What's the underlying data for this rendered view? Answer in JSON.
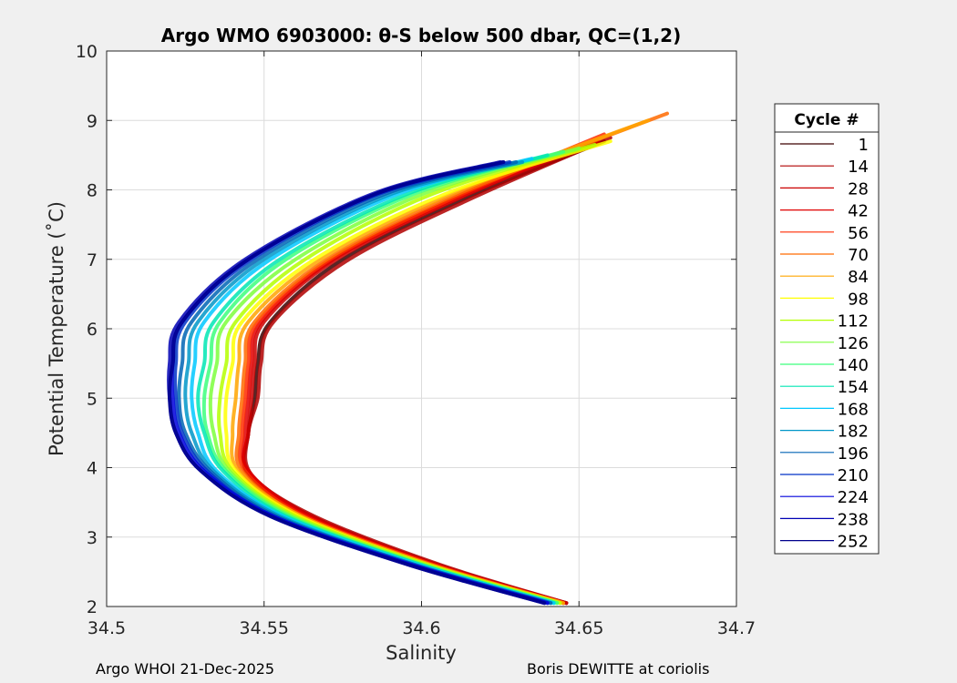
{
  "chart_data": {
    "type": "line",
    "title": "Argo WMO 6903000: θ-S below 500 dbar,  QC=(1,2)",
    "xlabel": "Salinity",
    "ylabel": "Potential Temperature (˚C)",
    "xlim": [
      34.5,
      34.7
    ],
    "ylim": [
      2,
      10
    ],
    "x_ticks": [
      34.5,
      34.55,
      34.6,
      34.65,
      34.7
    ],
    "x_tick_labels": [
      "34.5",
      "34.55",
      "34.6",
      "34.65",
      "34.7"
    ],
    "y_ticks": [
      2,
      3,
      4,
      5,
      6,
      7,
      8,
      9,
      10
    ],
    "y_tick_labels": [
      "2",
      "3",
      "4",
      "5",
      "6",
      "7",
      "8",
      "9",
      "10"
    ],
    "grid": true,
    "legend_position": "right",
    "legend_title": "Cycle #",
    "series": [
      {
        "name": "1",
        "color": "#3c0000",
        "profile": [
          [
            34.646,
            2.05
          ],
          [
            34.605,
            2.6
          ],
          [
            34.565,
            3.3
          ],
          [
            34.545,
            3.9
          ],
          [
            34.545,
            4.5
          ],
          [
            34.547,
            5.0
          ],
          [
            34.548,
            5.5
          ],
          [
            34.552,
            6.1
          ],
          [
            34.575,
            7.0
          ],
          [
            34.615,
            7.9
          ],
          [
            34.658,
            8.7
          ]
        ]
      },
      {
        "name": "14",
        "color": "#b00000",
        "profile": [
          [
            34.646,
            2.05
          ],
          [
            34.606,
            2.6
          ],
          [
            34.566,
            3.3
          ],
          [
            34.546,
            3.9
          ],
          [
            34.545,
            4.5
          ],
          [
            34.548,
            5.0
          ],
          [
            34.549,
            5.5
          ],
          [
            34.553,
            6.1
          ],
          [
            34.577,
            7.0
          ],
          [
            34.617,
            7.9
          ],
          [
            34.66,
            8.75
          ]
        ]
      },
      {
        "name": "28",
        "color": "#cc0000",
        "profile": [
          [
            34.646,
            2.05
          ],
          [
            34.605,
            2.6
          ],
          [
            34.565,
            3.3
          ],
          [
            34.545,
            3.95
          ],
          [
            34.545,
            4.5
          ],
          [
            34.546,
            5.0
          ],
          [
            34.547,
            5.5
          ],
          [
            34.55,
            6.1
          ],
          [
            34.573,
            7.0
          ],
          [
            34.613,
            7.9
          ],
          [
            34.656,
            8.7
          ]
        ]
      },
      {
        "name": "42",
        "color": "#e00000",
        "profile": [
          [
            34.645,
            2.05
          ],
          [
            34.604,
            2.6
          ],
          [
            34.564,
            3.3
          ],
          [
            34.545,
            3.95
          ],
          [
            34.544,
            4.5
          ],
          [
            34.545,
            5.0
          ],
          [
            34.546,
            5.5
          ],
          [
            34.549,
            6.1
          ],
          [
            34.572,
            7.0
          ],
          [
            34.612,
            7.9
          ],
          [
            34.655,
            8.7
          ]
        ]
      },
      {
        "name": "56",
        "color": "#ff2a00",
        "profile": [
          [
            34.645,
            2.05
          ],
          [
            34.604,
            2.6
          ],
          [
            34.563,
            3.3
          ],
          [
            34.544,
            3.95
          ],
          [
            34.543,
            4.5
          ],
          [
            34.544,
            5.0
          ],
          [
            34.545,
            5.5
          ],
          [
            34.548,
            6.1
          ],
          [
            34.571,
            7.0
          ],
          [
            34.611,
            7.9
          ],
          [
            34.658,
            8.8
          ]
        ]
      },
      {
        "name": "70",
        "color": "#ff6a00",
        "profile": [
          [
            34.645,
            2.05
          ],
          [
            34.603,
            2.6
          ],
          [
            34.562,
            3.3
          ],
          [
            34.543,
            3.95
          ],
          [
            34.542,
            4.5
          ],
          [
            34.543,
            5.0
          ],
          [
            34.544,
            5.5
          ],
          [
            34.547,
            6.1
          ],
          [
            34.57,
            7.0
          ],
          [
            34.612,
            7.95
          ],
          [
            34.678,
            9.1
          ]
        ]
      },
      {
        "name": "84",
        "color": "#ffa500",
        "profile": [
          [
            34.645,
            2.05
          ],
          [
            34.603,
            2.6
          ],
          [
            34.562,
            3.3
          ],
          [
            34.542,
            3.95
          ],
          [
            34.54,
            4.5
          ],
          [
            34.541,
            5.0
          ],
          [
            34.542,
            5.5
          ],
          [
            34.545,
            6.1
          ],
          [
            34.568,
            7.0
          ],
          [
            34.61,
            7.95
          ],
          [
            34.672,
            9.0
          ]
        ]
      },
      {
        "name": "98",
        "color": "#ffff00",
        "profile": [
          [
            34.644,
            2.05
          ],
          [
            34.602,
            2.6
          ],
          [
            34.561,
            3.3
          ],
          [
            34.541,
            3.95
          ],
          [
            34.538,
            4.5
          ],
          [
            34.538,
            5.0
          ],
          [
            34.54,
            5.5
          ],
          [
            34.543,
            6.1
          ],
          [
            34.566,
            7.0
          ],
          [
            34.608,
            7.95
          ],
          [
            34.66,
            8.7
          ]
        ]
      },
      {
        "name": "112",
        "color": "#b4ff00",
        "profile": [
          [
            34.644,
            2.05
          ],
          [
            34.602,
            2.6
          ],
          [
            34.56,
            3.3
          ],
          [
            34.54,
            3.95
          ],
          [
            34.536,
            4.5
          ],
          [
            34.536,
            5.0
          ],
          [
            34.538,
            5.5
          ],
          [
            34.541,
            6.1
          ],
          [
            34.563,
            7.0
          ],
          [
            34.604,
            7.95
          ],
          [
            34.655,
            8.65
          ]
        ]
      },
      {
        "name": "126",
        "color": "#7cff3c",
        "profile": [
          [
            34.643,
            2.05
          ],
          [
            34.601,
            2.6
          ],
          [
            34.559,
            3.3
          ],
          [
            34.539,
            3.95
          ],
          [
            34.534,
            4.5
          ],
          [
            34.533,
            5.0
          ],
          [
            34.535,
            5.5
          ],
          [
            34.538,
            6.1
          ],
          [
            34.56,
            7.0
          ],
          [
            34.601,
            7.95
          ],
          [
            34.65,
            8.6
          ]
        ]
      },
      {
        "name": "140",
        "color": "#3cff7c",
        "profile": [
          [
            34.643,
            2.05
          ],
          [
            34.6,
            2.6
          ],
          [
            34.558,
            3.3
          ],
          [
            34.538,
            3.95
          ],
          [
            34.532,
            4.5
          ],
          [
            34.531,
            5.0
          ],
          [
            34.533,
            5.5
          ],
          [
            34.536,
            6.1
          ],
          [
            34.557,
            7.0
          ],
          [
            34.598,
            7.95
          ],
          [
            34.645,
            8.55
          ]
        ]
      },
      {
        "name": "154",
        "color": "#00e6b4",
        "profile": [
          [
            34.642,
            2.05
          ],
          [
            34.6,
            2.6
          ],
          [
            34.557,
            3.3
          ],
          [
            34.537,
            3.95
          ],
          [
            34.531,
            4.5
          ],
          [
            34.529,
            5.0
          ],
          [
            34.531,
            5.5
          ],
          [
            34.534,
            6.1
          ],
          [
            34.555,
            7.0
          ],
          [
            34.596,
            7.95
          ],
          [
            34.64,
            8.5
          ]
        ]
      },
      {
        "name": "168",
        "color": "#00c8ff",
        "profile": [
          [
            34.642,
            2.05
          ],
          [
            34.599,
            2.6
          ],
          [
            34.556,
            3.3
          ],
          [
            34.535,
            3.95
          ],
          [
            34.529,
            4.5
          ],
          [
            34.527,
            5.0
          ],
          [
            34.528,
            5.5
          ],
          [
            34.531,
            6.1
          ],
          [
            34.552,
            7.0
          ],
          [
            34.593,
            7.95
          ],
          [
            34.635,
            8.45
          ]
        ]
      },
      {
        "name": "182",
        "color": "#0096c8",
        "profile": [
          [
            34.641,
            2.05
          ],
          [
            34.598,
            2.6
          ],
          [
            34.555,
            3.3
          ],
          [
            34.534,
            3.95
          ],
          [
            34.527,
            4.5
          ],
          [
            34.525,
            5.0
          ],
          [
            34.526,
            5.5
          ],
          [
            34.529,
            6.1
          ],
          [
            34.55,
            7.0
          ],
          [
            34.591,
            7.95
          ],
          [
            34.632,
            8.4
          ]
        ]
      },
      {
        "name": "196",
        "color": "#0064b4",
        "profile": [
          [
            34.641,
            2.05
          ],
          [
            34.598,
            2.6
          ],
          [
            34.554,
            3.3
          ],
          [
            34.533,
            3.95
          ],
          [
            34.525,
            4.5
          ],
          [
            34.523,
            5.0
          ],
          [
            34.524,
            5.5
          ],
          [
            34.527,
            6.1
          ],
          [
            34.548,
            7.0
          ],
          [
            34.589,
            7.95
          ],
          [
            34.63,
            8.4
          ]
        ]
      },
      {
        "name": "210",
        "color": "#0032c8",
        "profile": [
          [
            34.64,
            2.05
          ],
          [
            34.597,
            2.6
          ],
          [
            34.553,
            3.3
          ],
          [
            34.532,
            3.95
          ],
          [
            34.524,
            4.5
          ],
          [
            34.522,
            5.0
          ],
          [
            34.522,
            5.5
          ],
          [
            34.525,
            6.1
          ],
          [
            34.546,
            7.0
          ],
          [
            34.587,
            7.95
          ],
          [
            34.628,
            8.4
          ]
        ]
      },
      {
        "name": "224",
        "color": "#0000dc",
        "profile": [
          [
            34.64,
            2.05
          ],
          [
            34.597,
            2.6
          ],
          [
            34.553,
            3.3
          ],
          [
            34.531,
            3.95
          ],
          [
            34.523,
            4.5
          ],
          [
            34.521,
            5.0
          ],
          [
            34.521,
            5.5
          ],
          [
            34.524,
            6.1
          ],
          [
            34.545,
            7.0
          ],
          [
            34.586,
            7.95
          ],
          [
            34.626,
            8.4
          ]
        ]
      },
      {
        "name": "238",
        "color": "#0000b4",
        "profile": [
          [
            34.639,
            2.05
          ],
          [
            34.596,
            2.6
          ],
          [
            34.552,
            3.3
          ],
          [
            34.53,
            3.95
          ],
          [
            34.522,
            4.5
          ],
          [
            34.52,
            5.0
          ],
          [
            34.52,
            5.5
          ],
          [
            34.523,
            6.1
          ],
          [
            34.544,
            7.0
          ],
          [
            34.585,
            7.95
          ],
          [
            34.625,
            8.4
          ]
        ]
      },
      {
        "name": "252",
        "color": "#00008c",
        "profile": [
          [
            34.639,
            2.05
          ],
          [
            34.596,
            2.6
          ],
          [
            34.552,
            3.3
          ],
          [
            34.53,
            3.95
          ],
          [
            34.522,
            4.5
          ],
          [
            34.52,
            5.0
          ],
          [
            34.521,
            5.5
          ],
          [
            34.524,
            6.1
          ],
          [
            34.545,
            7.0
          ],
          [
            34.586,
            7.95
          ],
          [
            34.626,
            8.4
          ]
        ]
      }
    ]
  },
  "footer": {
    "left": "Argo WHOI 21-Dec-2025",
    "right": "Boris DEWITTE at coriolis"
  }
}
